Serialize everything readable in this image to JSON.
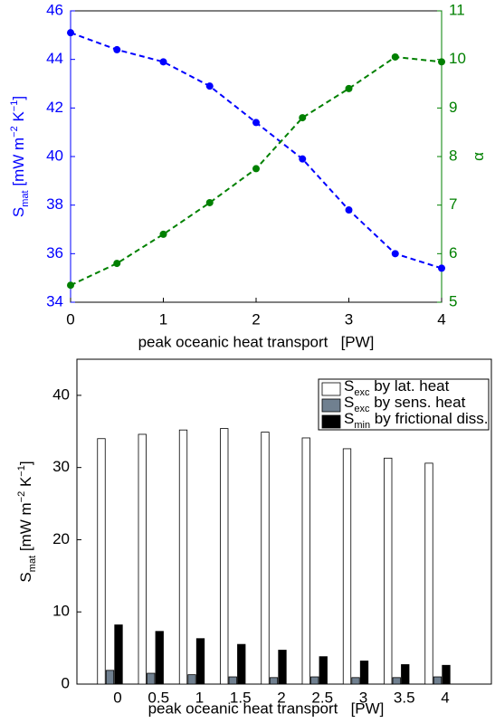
{
  "chart_data": [
    {
      "type": "line",
      "x": [
        0,
        0.5,
        1,
        1.5,
        2,
        2.5,
        3,
        3.5,
        4
      ],
      "xlim": [
        0,
        4
      ],
      "xticks": [
        0,
        1,
        2,
        3,
        4
      ],
      "ylim": [
        34,
        46
      ],
      "yticks": [
        34,
        36,
        38,
        40,
        42,
        44,
        46
      ],
      "y2lim": [
        5,
        11
      ],
      "y2ticks": [
        5,
        6,
        7,
        8,
        9,
        10,
        11
      ],
      "xlabel": "peak oceanic heat transport   [PW]",
      "ylabel": [
        {
          "text": "S"
        },
        {
          "text": "mat",
          "shift": "sub"
        },
        {
          "text": " [mW m"
        },
        {
          "text": "−2",
          "shift": "super"
        },
        {
          "text": " K"
        },
        {
          "text": "−1",
          "shift": "super"
        },
        {
          "text": "]"
        }
      ],
      "y2label": [
        {
          "text": "α"
        }
      ],
      "linestyle": "dashed",
      "marker": "circle",
      "series": [
        {
          "name": [
            {
              "text": "S"
            },
            {
              "text": "mat",
              "shift": "sub"
            }
          ],
          "color": "#0000ff",
          "values": [
            45.1,
            44.4,
            43.9,
            42.9,
            41.4,
            39.9,
            37.8,
            36.0,
            35.4
          ]
        },
        {
          "name": [
            {
              "text": "α"
            }
          ],
          "color": "#008000",
          "axis": "y2",
          "values": [
            5.35,
            5.8,
            6.4,
            7.05,
            7.75,
            8.8,
            9.4,
            10.05,
            9.95
          ]
        }
      ]
    },
    {
      "type": "bar",
      "categories": [
        "0",
        "0.5",
        "1",
        "1.5",
        "2",
        "2.5",
        "3",
        "3.5",
        "4"
      ],
      "ylim": [
        0,
        45
      ],
      "yticks": [
        0,
        10,
        20,
        30,
        40
      ],
      "xlabel": "peak oceanic heat transport   [PW]",
      "ylabel": [
        {
          "text": "S"
        },
        {
          "text": "mat",
          "shift": "sub"
        },
        {
          "text": " [mW m"
        },
        {
          "text": "−2",
          "shift": "super"
        },
        {
          "text": " K"
        },
        {
          "text": "−1",
          "shift": "super"
        },
        {
          "text": "]"
        }
      ],
      "legend": "upper right",
      "series": [
        {
          "name": [
            {
              "text": "S"
            },
            {
              "text": "exc",
              "shift": "sub"
            },
            {
              "text": " by lat. heat"
            }
          ],
          "color": "#ffffff",
          "values": [
            34.0,
            34.6,
            35.2,
            35.4,
            34.9,
            34.1,
            32.6,
            31.3,
            30.6
          ]
        },
        {
          "name": [
            {
              "text": "S"
            },
            {
              "text": "exc",
              "shift": "sub"
            },
            {
              "text": " by sens. heat"
            }
          ],
          "color": "#708090",
          "values": [
            1.9,
            1.5,
            1.3,
            1.0,
            0.9,
            1.0,
            0.9,
            0.9,
            1.0
          ]
        },
        {
          "name": [
            {
              "text": "S"
            },
            {
              "text": "min",
              "shift": "sub"
            },
            {
              "text": " by frictional diss."
            }
          ],
          "color": "#000000",
          "values": [
            8.2,
            7.3,
            6.3,
            5.5,
            4.7,
            3.8,
            3.2,
            2.7,
            2.6
          ]
        }
      ]
    }
  ]
}
